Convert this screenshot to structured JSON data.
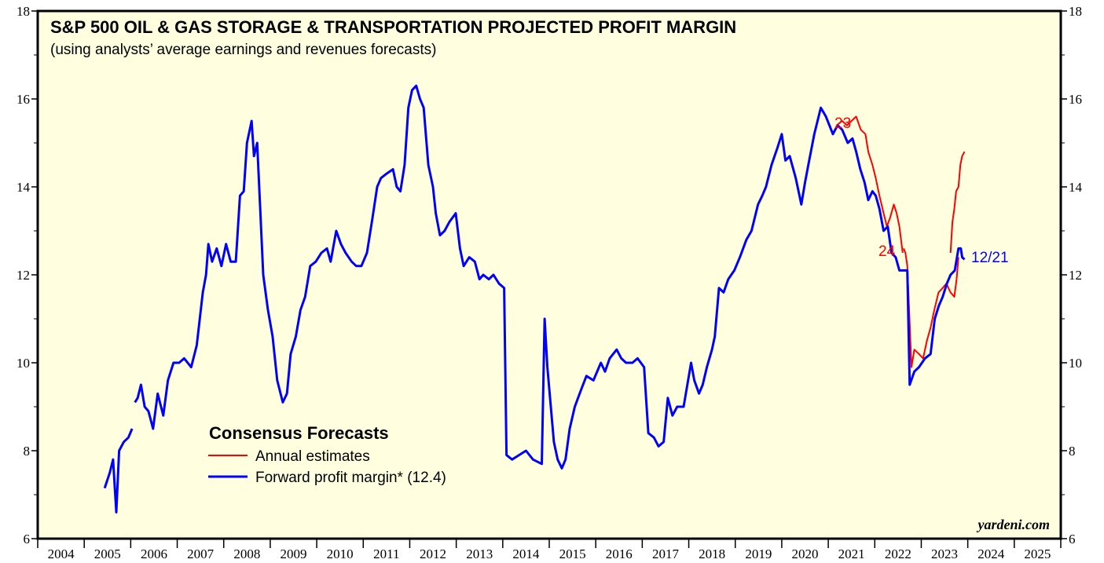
{
  "chart_data": {
    "type": "line",
    "title": "S&P 500 OIL & GAS STORAGE & TRANSPORTATION PROJECTED PROFIT MARGIN",
    "subtitle": "(using analysts’ average earnings and revenues forecasts)",
    "legend_title": "Consensus Forecasts",
    "source": "yardeni.com",
    "xlim": [
      2004,
      2026
    ],
    "xticks": [
      2004,
      2005,
      2006,
      2007,
      2008,
      2009,
      2010,
      2011,
      2012,
      2013,
      2014,
      2015,
      2016,
      2017,
      2018,
      2019,
      2020,
      2021,
      2022,
      2023,
      2024,
      2025
    ],
    "ylim": [
      6,
      18
    ],
    "yticks": [
      6,
      8,
      10,
      12,
      14,
      16,
      18
    ],
    "yticks_minor": [
      7,
      9,
      11,
      13,
      15,
      17
    ],
    "background": "#ffffe0",
    "series": [
      {
        "name": "Annual estimates",
        "color": "#ff0000",
        "width": 2,
        "x": [
          2021.18,
          2021.3,
          2021.4,
          2021.5,
          2021.6,
          2021.7,
          2021.8,
          2021.86,
          2021.95,
          2022.02,
          2022.1,
          2022.19,
          2022.26,
          2022.33,
          2022.41,
          2022.47,
          2022.53,
          2022.6,
          null,
          2022.62,
          2022.66,
          2022.7,
          2022.79,
          2022.85,
          2022.95,
          2023.04,
          2023.12,
          2023.2,
          2023.28,
          2023.37,
          2023.46,
          2023.54,
          2023.63,
          2023.71,
          2023.76,
          2023.8,
          null,
          2023.63,
          2023.67,
          2023.71,
          2023.75,
          2023.8,
          2023.84,
          2023.88,
          2023.93
        ],
        "values": [
          15.4,
          15.5,
          15.4,
          15.5,
          15.6,
          15.3,
          15.2,
          14.8,
          14.5,
          14.2,
          13.8,
          13.4,
          13.1,
          13.3,
          13.6,
          13.4,
          13.1,
          12.5,
          null,
          12.6,
          12.5,
          12.2,
          9.9,
          10.3,
          10.2,
          10.1,
          10.5,
          10.8,
          11.2,
          11.6,
          11.7,
          11.8,
          11.6,
          11.5,
          11.9,
          12.4,
          null,
          12.5,
          13.2,
          13.5,
          13.9,
          14.0,
          14.5,
          14.7,
          14.8
        ]
      },
      {
        "name": "Forward profit margin* (12.4)",
        "color": "#0000ff",
        "width": 3,
        "x": [
          2005.44,
          2005.55,
          2005.62,
          2005.69,
          2005.75,
          2005.85,
          2005.95,
          2006.03,
          null,
          2006.09,
          2006.15,
          2006.22,
          2006.3,
          2006.38,
          2006.48,
          2006.58,
          2006.7,
          2006.8,
          2006.92,
          2007.04,
          2007.15,
          2007.3,
          2007.42,
          2007.55,
          2007.62,
          2007.67,
          2007.75,
          2007.85,
          2007.95,
          2008.05,
          2008.15,
          2008.26,
          2008.35,
          2008.43,
          2008.5,
          2008.6,
          2008.65,
          2008.72,
          2008.85,
          2008.95,
          2009.05,
          2009.15,
          2009.27,
          2009.36,
          2009.44,
          2009.55,
          2009.65,
          2009.75,
          2009.86,
          2009.98,
          2010.1,
          2010.22,
          2010.3,
          2010.42,
          2010.52,
          2010.62,
          2010.75,
          2010.85,
          2010.96,
          2011.08,
          2011.2,
          2011.3,
          2011.38,
          2011.5,
          2011.64,
          2011.72,
          2011.8,
          2011.89,
          2011.97,
          2012.05,
          2012.14,
          2012.22,
          2012.3,
          2012.4,
          2012.5,
          2012.56,
          2012.65,
          2012.75,
          2012.85,
          2012.99,
          2013.08,
          2013.16,
          2013.28,
          2013.4,
          2013.5,
          2013.58,
          2013.7,
          2013.8,
          2013.92,
          2014.03,
          2014.08,
          2014.2,
          2014.35,
          2014.5,
          2014.65,
          2014.84,
          2014.9,
          2014.96,
          2015.1,
          2015.18,
          2015.27,
          2015.35,
          2015.44,
          2015.55,
          2015.69,
          2015.8,
          2015.95,
          2016.11,
          2016.2,
          2016.3,
          2016.45,
          2016.55,
          2016.65,
          2016.79,
          2016.9,
          2017.04,
          2017.13,
          2017.25,
          2017.35,
          2017.46,
          2017.55,
          2017.65,
          2017.75,
          2017.89,
          2018.05,
          2018.12,
          2018.22,
          2018.3,
          2018.39,
          2018.5,
          2018.56,
          2018.65,
          2018.75,
          2018.85,
          2018.98,
          2019.1,
          2019.24,
          2019.35,
          2019.49,
          2019.58,
          2019.66,
          2019.78,
          2019.91,
          2020.0,
          2020.08,
          2020.17,
          2020.3,
          2020.42,
          2020.5,
          2020.59,
          2020.7,
          2020.84,
          2020.95,
          2021.1,
          2021.2,
          2021.3,
          2021.42,
          2021.52,
          2021.6,
          2021.69,
          2021.78,
          2021.86,
          2021.95,
          2022.02,
          2022.1,
          2022.19,
          2022.28,
          2022.36,
          2022.45,
          2022.53,
          2022.62,
          2022.7,
          2022.75,
          2022.85,
          2022.95,
          2023.08,
          2023.2,
          2023.29,
          2023.38,
          2023.46,
          2023.55,
          2023.63,
          2023.72,
          2023.8,
          2023.85,
          2023.88,
          2023.93
        ],
        "values": [
          7.15,
          7.5,
          7.8,
          6.6,
          8.0,
          8.2,
          8.3,
          8.5,
          null,
          9.1,
          9.2,
          9.5,
          9.0,
          8.9,
          8.5,
          9.3,
          8.8,
          9.6,
          10.0,
          10.0,
          10.1,
          9.9,
          10.4,
          11.6,
          12.0,
          12.7,
          12.3,
          12.6,
          12.2,
          12.7,
          12.3,
          12.3,
          13.8,
          13.9,
          15.0,
          15.5,
          14.7,
          15.0,
          12.0,
          11.2,
          10.6,
          9.6,
          9.1,
          9.3,
          10.2,
          10.6,
          11.2,
          11.5,
          12.2,
          12.3,
          12.5,
          12.6,
          12.3,
          13.0,
          12.7,
          12.5,
          12.3,
          12.2,
          12.2,
          12.5,
          13.3,
          14.0,
          14.2,
          14.3,
          14.4,
          14.0,
          13.9,
          14.5,
          15.8,
          16.2,
          16.3,
          16.0,
          15.8,
          14.5,
          14.0,
          13.4,
          12.9,
          13.0,
          13.2,
          13.4,
          12.6,
          12.2,
          12.4,
          12.3,
          11.9,
          12.0,
          11.9,
          12.0,
          11.8,
          11.7,
          7.9,
          7.8,
          7.9,
          8.0,
          7.8,
          7.7,
          11.0,
          9.9,
          8.2,
          7.8,
          7.6,
          7.8,
          8.5,
          9.0,
          9.4,
          9.7,
          9.6,
          10.0,
          9.8,
          10.1,
          10.3,
          10.1,
          10.0,
          10.0,
          10.1,
          9.9,
          8.4,
          8.3,
          8.1,
          8.2,
          9.2,
          8.8,
          9.0,
          9.0,
          10.0,
          9.6,
          9.3,
          9.5,
          9.9,
          10.3,
          10.6,
          11.7,
          11.6,
          11.9,
          12.1,
          12.4,
          12.8,
          13.0,
          13.6,
          13.8,
          14.0,
          14.5,
          14.9,
          15.2,
          14.6,
          14.7,
          14.2,
          13.6,
          14.1,
          14.6,
          15.2,
          15.8,
          15.6,
          15.2,
          15.4,
          15.3,
          15.0,
          15.1,
          14.8,
          14.4,
          14.1,
          13.7,
          13.9,
          13.8,
          13.5,
          13.0,
          13.1,
          12.5,
          12.4,
          12.1,
          12.1,
          12.1,
          9.5,
          9.8,
          9.9,
          10.1,
          10.2,
          11.0,
          11.3,
          11.5,
          11.8,
          12.0,
          12.1,
          12.6,
          12.6,
          12.4,
          12.35
        ]
      }
    ],
    "annotations": [
      {
        "text": "23",
        "color": "#ff0000"
      },
      {
        "text": "24",
        "color": "#ff0000"
      },
      {
        "text": "12/21",
        "color": "#0000ff"
      }
    ]
  }
}
